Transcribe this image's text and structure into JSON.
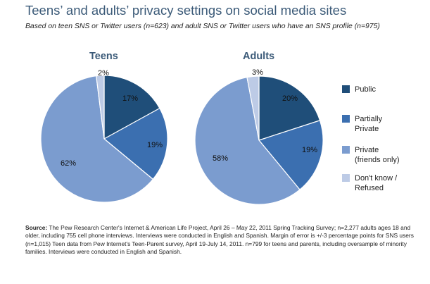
{
  "title": "Teens’ and adults’ privacy settings on social media sites",
  "subtitle": "Based on teen SNS or Twitter users (n=623) and adult SNS or Twitter users who have an SNS profile (n=975)",
  "colors": {
    "public": "#1f4e79",
    "partially_private": "#3b6fb0",
    "private": "#7b9ccf",
    "dont_know": "#bdcbe6"
  },
  "legend": [
    {
      "key": "public",
      "label": "Public"
    },
    {
      "key": "partially_private",
      "label": "Partially\nPrivate"
    },
    {
      "key": "private",
      "label": "Private\n(friends only)"
    },
    {
      "key": "dont_know",
      "label": "Don't know /\nRefused"
    }
  ],
  "chart_data": [
    {
      "type": "pie",
      "title": "Teens",
      "slices": [
        {
          "key": "public",
          "label": "Public",
          "value": 17,
          "text": "17%"
        },
        {
          "key": "partially_private",
          "label": "Partially Private",
          "value": 19,
          "text": "19%"
        },
        {
          "key": "private",
          "label": "Private (friends only)",
          "value": 62,
          "text": "62%"
        },
        {
          "key": "dont_know",
          "label": "Don't know / Refused",
          "value": 2,
          "text": "2%"
        }
      ]
    },
    {
      "type": "pie",
      "title": "Adults",
      "slices": [
        {
          "key": "public",
          "label": "Public",
          "value": 20,
          "text": "20%"
        },
        {
          "key": "partially_private",
          "label": "Partially Private",
          "value": 19,
          "text": "19%"
        },
        {
          "key": "private",
          "label": "Private (friends only)",
          "value": 58,
          "text": "58%"
        },
        {
          "key": "dont_know",
          "label": "Don't know / Refused",
          "value": 3,
          "text": "3%"
        }
      ]
    }
  ],
  "source": {
    "label": "Source:",
    "text": " The Pew Research Center's Internet & American Life Project, April 26 – May 22, 2011 Spring Tracking Survey; n=2,277 adults ages 18 and older, including 755 cell phone interviews. Interviews were conducted in English and Spanish. Margin of error is +/-3 percentage points for SNS users (n=1,015) Teen data from Pew Internet's Teen-Parent survey, April 19-July 14, 2011. n=799 for teens and parents, including oversample of minority families. Interviews were conducted in English and Spanish."
  }
}
